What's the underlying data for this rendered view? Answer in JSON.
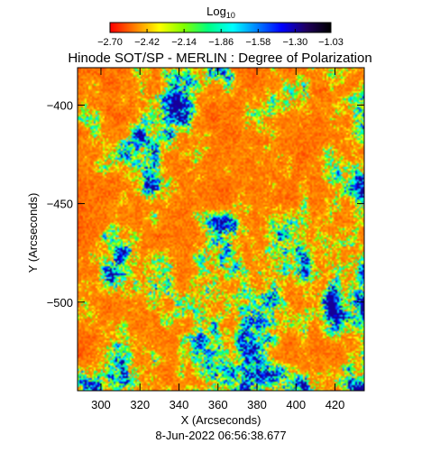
{
  "chart_data": {
    "type": "heatmap",
    "title": "Hinode SOT/SP - MERLIN : Degree of Polarization",
    "colorbar": {
      "label_base": "Log",
      "label_subscript": "10",
      "tick_labels": [
        "-2.70",
        "-2.42",
        "-2.14",
        "-1.86",
        "-1.58",
        "-1.30",
        "-1.03"
      ],
      "range": [
        -2.7,
        -1.03
      ],
      "colormap": [
        "#ff0000",
        "#ff8000",
        "#ffff00",
        "#80ff00",
        "#00ff80",
        "#00ffff",
        "#0080ff",
        "#0000ff",
        "#200060",
        "#000000"
      ]
    },
    "xlabel": "X (Arcseconds)",
    "ylabel": "Y (Arcseconds)",
    "xlim": [
      288,
      435
    ],
    "ylim": [
      -545,
      -381
    ],
    "x_ticks": [
      300,
      320,
      340,
      360,
      380,
      400,
      420
    ],
    "y_ticks": [
      -400,
      -450,
      -500
    ],
    "timestamp": "8-Jun-2022 06:56:38.677"
  },
  "colors": {
    "background": "#ffffff",
    "axes": "#000000"
  }
}
